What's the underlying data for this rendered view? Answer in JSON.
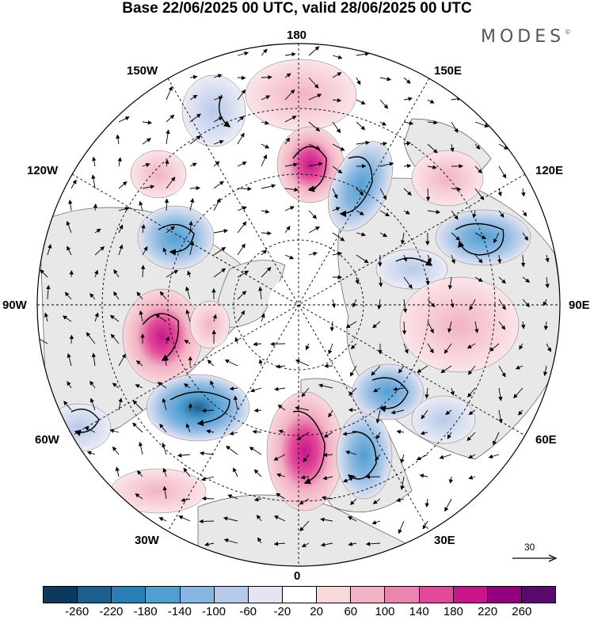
{
  "title": "Base 22/06/2025 00 UTC, valid 28/06/2025 00 UTC",
  "brand": "MODES",
  "brand_mark": "©",
  "map_labels": {
    "n180": "180",
    "e150": "150E",
    "e120": "120E",
    "e90": "90E",
    "e60": "60E",
    "e30": "30E",
    "s0": "0",
    "w30": "30W",
    "w60": "60W",
    "w90": "90W",
    "w120": "120W",
    "w150": "150W"
  },
  "reference_vector": {
    "label": "30",
    "value": 30
  },
  "colorbar": {
    "ticks": [
      "-260",
      "-220",
      "-180",
      "-140",
      "-100",
      "-60",
      "-20",
      "20",
      "60",
      "100",
      "140",
      "180",
      "220",
      "260"
    ],
    "colors": [
      "#0d3a5c",
      "#1b5f8d",
      "#2a7fb7",
      "#4f9fd0",
      "#86b6e1",
      "#b7c9e8",
      "#e4e4f2",
      "#ffffff",
      "#f9d8dc",
      "#f2b3c4",
      "#ec84b0",
      "#e24a99",
      "#c8168a",
      "#93007e",
      "#5a0a6e"
    ]
  },
  "anomaly_centers": [
    {
      "id": "n-pacific-high",
      "sign": "positive",
      "value": 180
    },
    {
      "id": "kamchatka-low",
      "sign": "negative",
      "value": -140
    },
    {
      "id": "east-siberia-high",
      "sign": "positive",
      "value": 100
    },
    {
      "id": "central-siberia-low",
      "sign": "negative",
      "value": -140
    },
    {
      "id": "canada-low",
      "sign": "negative",
      "value": -140
    },
    {
      "id": "hudson-high",
      "sign": "positive",
      "value": 220
    },
    {
      "id": "labrador-low",
      "sign": "negative",
      "value": -220
    },
    {
      "id": "europe-high",
      "sign": "positive",
      "value": 180
    },
    {
      "id": "east-europe-low",
      "sign": "negative",
      "value": -140
    },
    {
      "id": "west-siberia-low",
      "sign": "negative",
      "value": -100
    },
    {
      "id": "central-asia-high",
      "sign": "positive",
      "value": 60
    },
    {
      "id": "greenland-sea-high",
      "sign": "positive",
      "value": 60
    }
  ]
}
